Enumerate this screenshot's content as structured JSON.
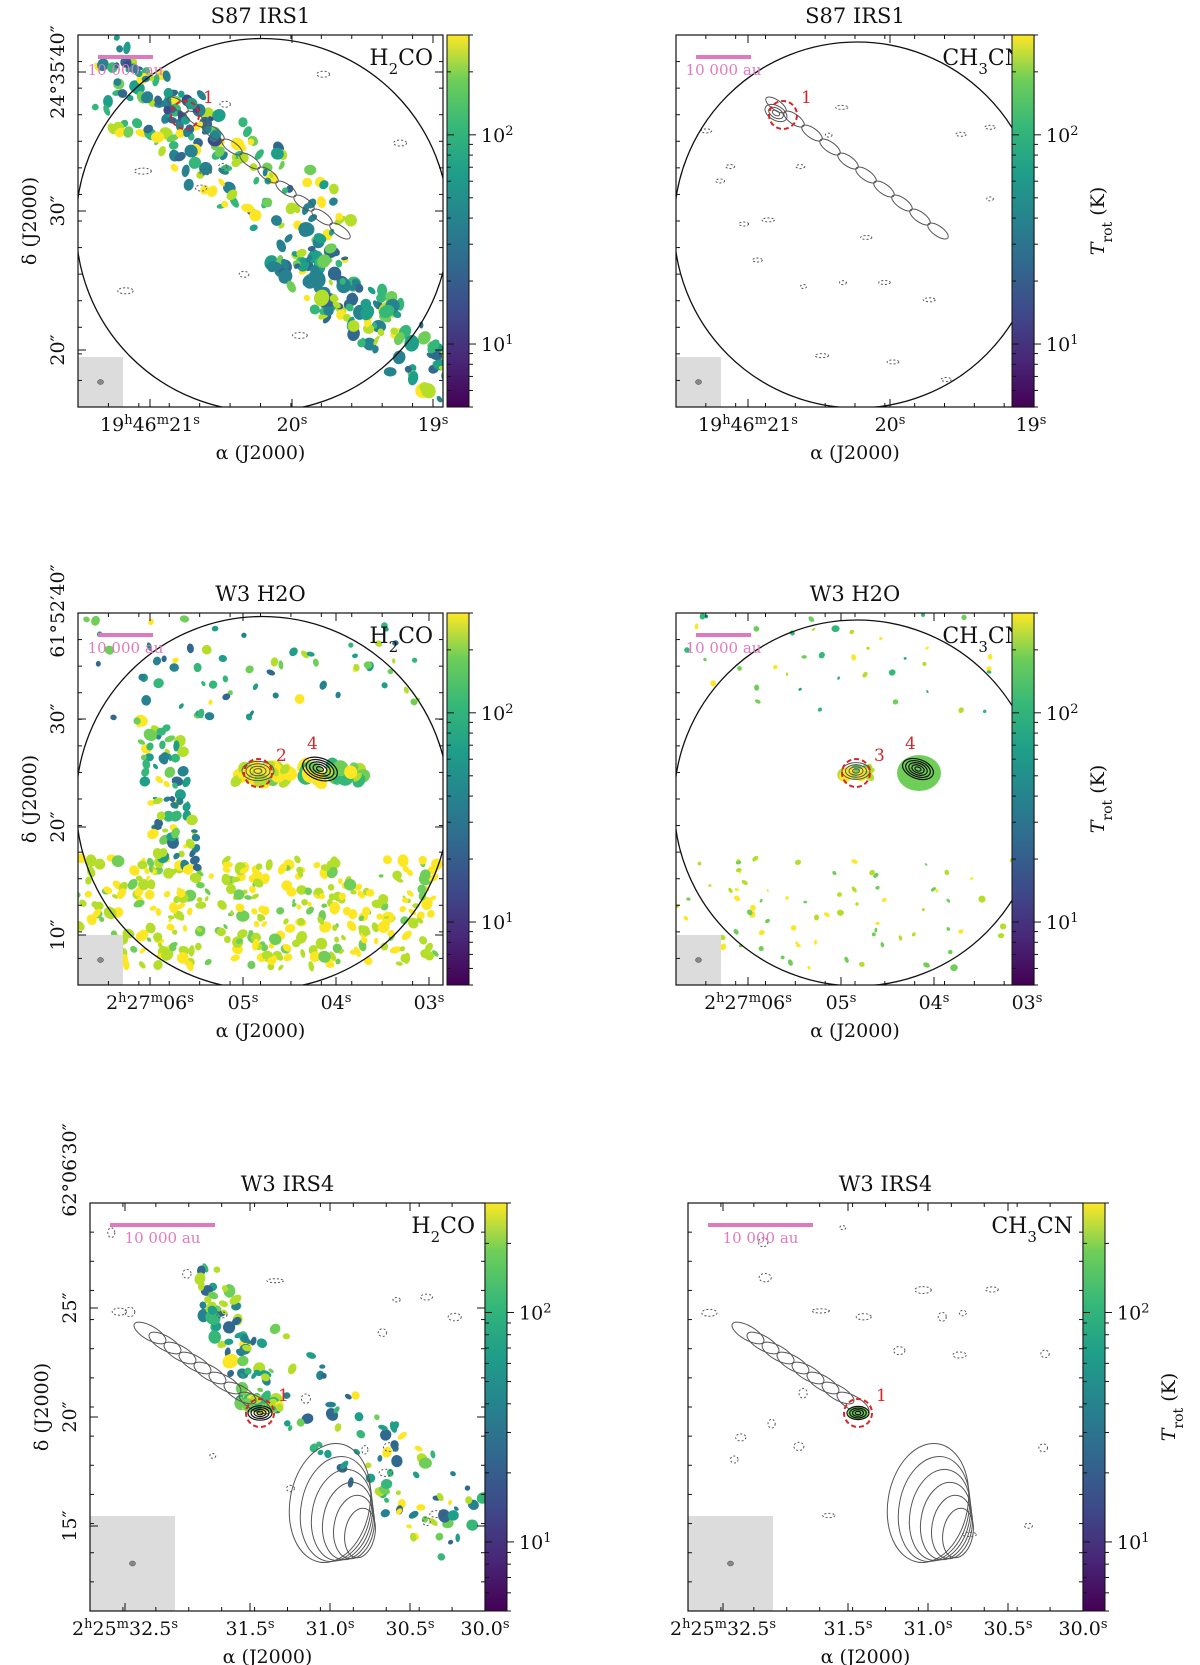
{
  "colors": {
    "scale_bar": "#e07ac0",
    "source_marker": "#d62728",
    "beam_box": "#dcdcdc",
    "contour": "#555555",
    "frame": "#111111"
  },
  "chart_data": [
    {
      "type": "heatmap",
      "panel": "s87-h2co",
      "title": "S87 IRS1",
      "molecule": "H2CO",
      "xlabel": "α (J2000)",
      "ylabel": "δ (J2000)",
      "x_ticks": [
        "19h46m21s",
        "20s",
        "19s"
      ],
      "y_ticks": [
        "24°35′40″",
        "30″",
        "20″"
      ],
      "scale_bar": "10 000 au",
      "colorbar": {
        "ticks": [
          "10^2",
          "10^1"
        ],
        "range": [
          5,
          300
        ],
        "scale": "log",
        "label": ""
      },
      "sources": [
        "1"
      ]
    },
    {
      "type": "heatmap",
      "panel": "s87-ch3cn",
      "title": "S87 IRS1",
      "molecule": "CH3CN",
      "xlabel": "α (J2000)",
      "ylabel": "",
      "x_ticks": [
        "19h46m21s",
        "20s",
        "19s"
      ],
      "y_ticks": [],
      "scale_bar": "10 000 au",
      "colorbar": {
        "ticks": [
          "10^2",
          "10^1"
        ],
        "range": [
          5,
          300
        ],
        "scale": "log",
        "label": "Trot (K)"
      },
      "sources": [
        "1"
      ]
    },
    {
      "type": "heatmap",
      "panel": "w3h2o-h2co",
      "title": "W3 H2O",
      "molecule": "H2CO",
      "xlabel": "α (J2000)",
      "ylabel": "δ (J2000)",
      "x_ticks": [
        "2h27m06s",
        "05s",
        "04s",
        "03s"
      ],
      "y_ticks": [
        "61°52′40″",
        "30″",
        "20″",
        "10″"
      ],
      "scale_bar": "10 000 au",
      "colorbar": {
        "ticks": [
          "10^2",
          "10^1"
        ],
        "range": [
          5,
          300
        ],
        "scale": "log",
        "label": ""
      },
      "sources": [
        "2",
        "4"
      ]
    },
    {
      "type": "heatmap",
      "panel": "w3h2o-ch3cn",
      "title": "W3 H2O",
      "molecule": "CH3CN",
      "xlabel": "α (J2000)",
      "ylabel": "",
      "x_ticks": [
        "2h27m06s",
        "05s",
        "04s",
        "03s"
      ],
      "y_ticks": [],
      "scale_bar": "10 000 au",
      "colorbar": {
        "ticks": [
          "10^2",
          "10^1"
        ],
        "range": [
          5,
          300
        ],
        "scale": "log",
        "label": "Trot (K)"
      },
      "sources": [
        "3",
        "4"
      ]
    },
    {
      "type": "heatmap",
      "panel": "w3irs4-h2co",
      "title": "W3 IRS4",
      "molecule": "H2CO",
      "xlabel": "α (J2000)",
      "ylabel": "δ (J2000)",
      "x_ticks": [
        "2h25m32.5s",
        "31.5s",
        "31.0s",
        "30.5s",
        "30.0s"
      ],
      "y_ticks": [
        "62°06′30″",
        "25″",
        "20″",
        "15″"
      ],
      "scale_bar": "10 000 au",
      "colorbar": {
        "ticks": [
          "10^2",
          "10^1"
        ],
        "range": [
          5,
          300
        ],
        "scale": "log",
        "label": ""
      },
      "sources": [
        "1"
      ]
    },
    {
      "type": "heatmap",
      "panel": "w3irs4-ch3cn",
      "title": "W3 IRS4",
      "molecule": "CH3CN",
      "xlabel": "α (J2000)",
      "ylabel": "",
      "x_ticks": [
        "2h25m32.5s",
        "31.5s",
        "31.0s",
        "30.5s",
        "30.0s"
      ],
      "y_ticks": [],
      "scale_bar": "10 000 au",
      "colorbar": {
        "ticks": [
          "10^2",
          "10^1"
        ],
        "range": [
          5,
          300
        ],
        "scale": "log",
        "label": "Trot (K)"
      },
      "sources": [
        "1"
      ]
    }
  ]
}
